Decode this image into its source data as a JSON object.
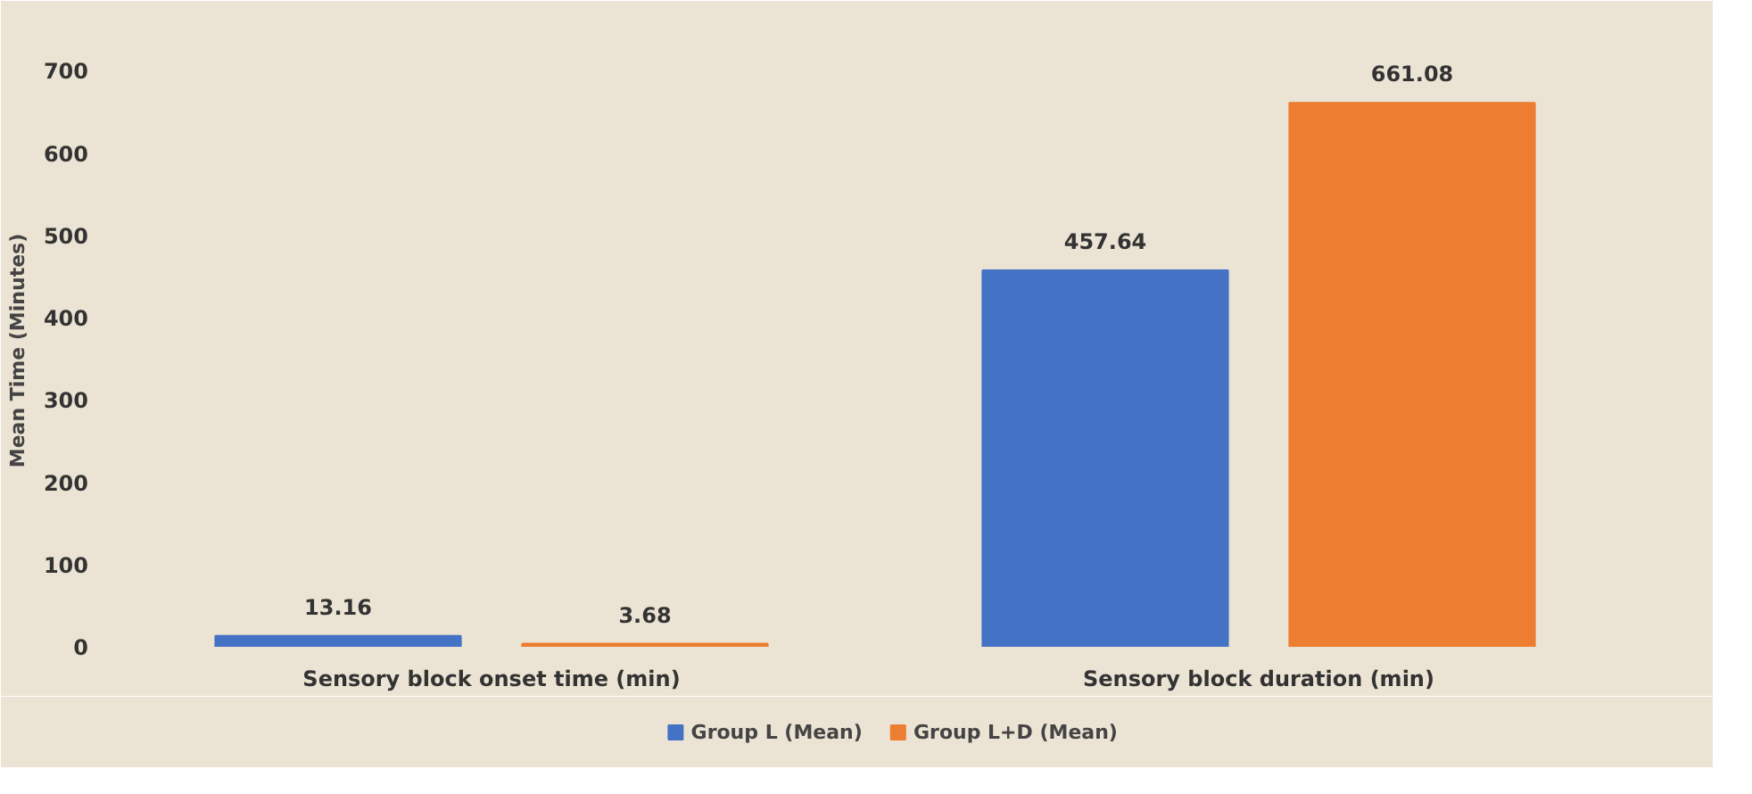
{
  "chart_data": {
    "type": "bar",
    "ylabel": "Mean Time (Minutes)",
    "categories": [
      "Sensory block onset time (min)",
      "Sensory block duration (min)"
    ],
    "series": [
      {
        "name": "Group L (Mean)",
        "color": "#4472c4",
        "values": [
          13.16,
          457.64
        ]
      },
      {
        "name": "Group L+D (Mean)",
        "color": "#ed7d31",
        "values": [
          3.68,
          661.08
        ]
      }
    ],
    "ylim": [
      0,
      720
    ],
    "yticks": [
      0,
      100,
      200,
      300,
      400,
      500,
      600,
      700
    ],
    "data_labels": true,
    "grid": false,
    "legend": "bottom"
  }
}
